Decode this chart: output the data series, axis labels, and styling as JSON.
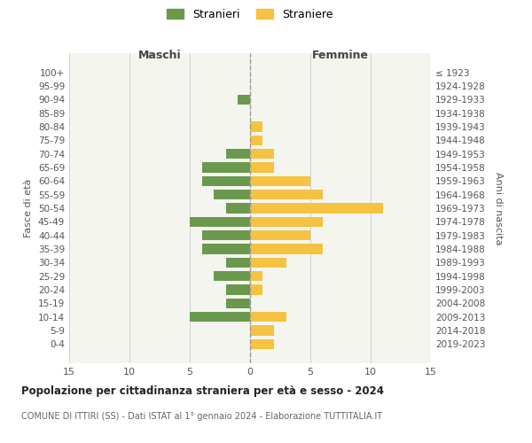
{
  "age_groups": [
    "0-4",
    "5-9",
    "10-14",
    "15-19",
    "20-24",
    "25-29",
    "30-34",
    "35-39",
    "40-44",
    "45-49",
    "50-54",
    "55-59",
    "60-64",
    "65-69",
    "70-74",
    "75-79",
    "80-84",
    "85-89",
    "90-94",
    "95-99",
    "100+"
  ],
  "birth_years": [
    "2019-2023",
    "2014-2018",
    "2009-2013",
    "2004-2008",
    "1999-2003",
    "1994-1998",
    "1989-1993",
    "1984-1988",
    "1979-1983",
    "1974-1978",
    "1969-1973",
    "1964-1968",
    "1959-1963",
    "1954-1958",
    "1949-1953",
    "1944-1948",
    "1939-1943",
    "1934-1938",
    "1929-1933",
    "1924-1928",
    "≤ 1923"
  ],
  "males": [
    0,
    0,
    5,
    2,
    2,
    3,
    2,
    4,
    4,
    5,
    2,
    3,
    4,
    4,
    2,
    0,
    0,
    0,
    1,
    0,
    0
  ],
  "females": [
    2,
    2,
    3,
    0,
    1,
    1,
    3,
    6,
    5,
    6,
    11,
    6,
    5,
    2,
    2,
    1,
    1,
    0,
    0,
    0,
    0
  ],
  "male_color": "#6a994e",
  "female_color": "#f5c242",
  "title": "Popolazione per cittadinanza straniera per età e sesso - 2024",
  "subtitle": "COMUNE DI ITTIRI (SS) - Dati ISTAT al 1° gennaio 2024 - Elaborazione TUTTITALIA.IT",
  "xlabel_left": "Maschi",
  "xlabel_right": "Femmine",
  "ylabel_left": "Fasce di età",
  "ylabel_right": "Anni di nascita",
  "legend_stranieri": "Stranieri",
  "legend_straniere": "Straniere",
  "xlim": 15,
  "bg_color": "#ffffff",
  "plot_bg_color": "#f5f5ef",
  "grid_color": "#d0d0d0"
}
